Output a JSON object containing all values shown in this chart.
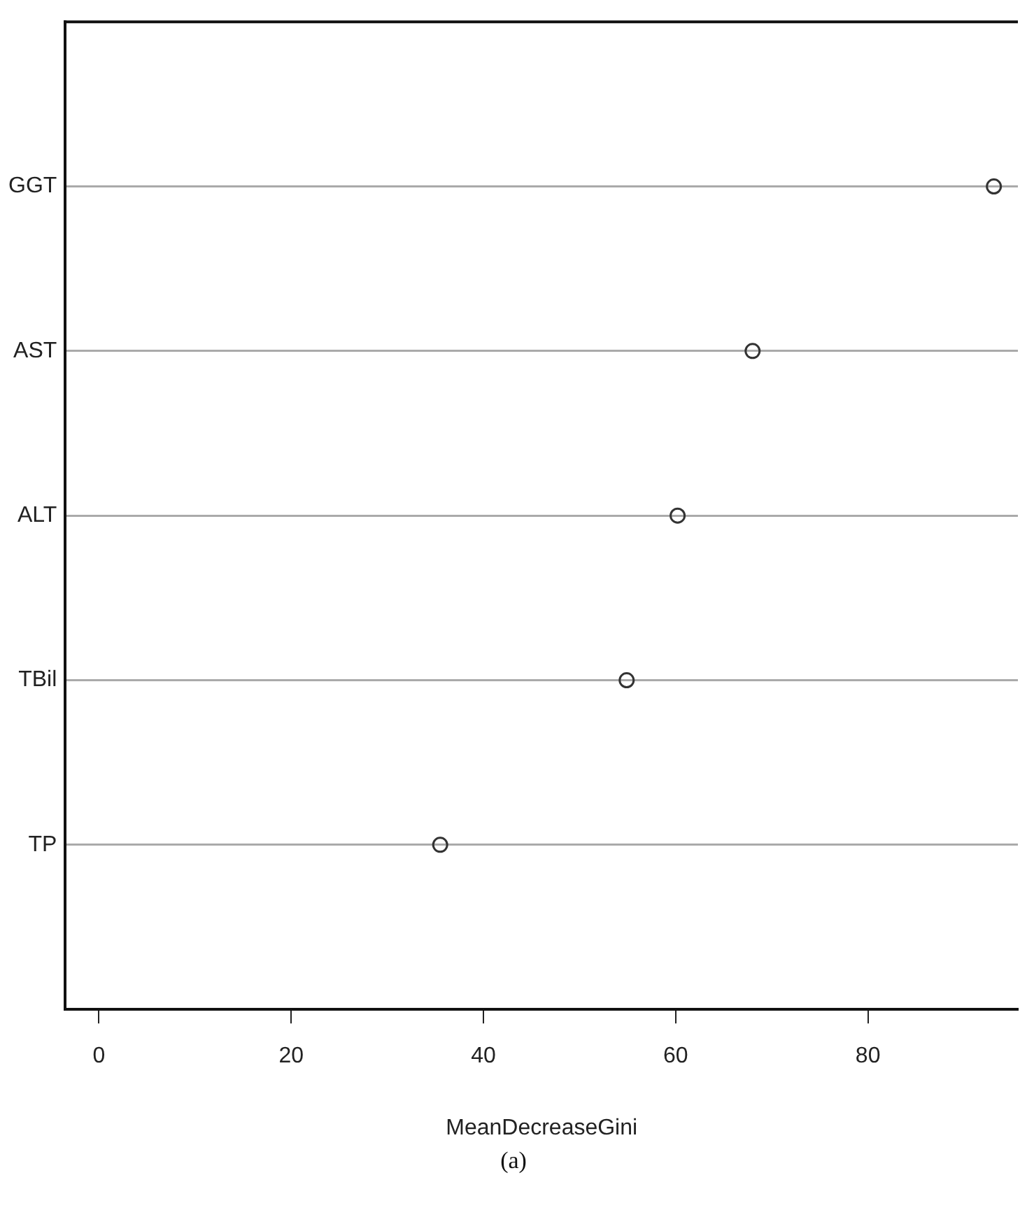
{
  "chart_data": {
    "type": "scatter",
    "orientation": "horizontal",
    "categories": [
      "GGT",
      "AST",
      "ALT",
      "TBil",
      "TP"
    ],
    "values": [
      93.1,
      68.0,
      60.2,
      54.9,
      35.5
    ],
    "color": "#333333",
    "marker": "circle",
    "xlabel": "MeanDecreaseGini",
    "xlim": [
      -3.5,
      95.6
    ],
    "xticks": [
      0,
      20,
      40,
      60,
      80
    ],
    "grid": "y",
    "annotations": [
      "(a)"
    ]
  }
}
